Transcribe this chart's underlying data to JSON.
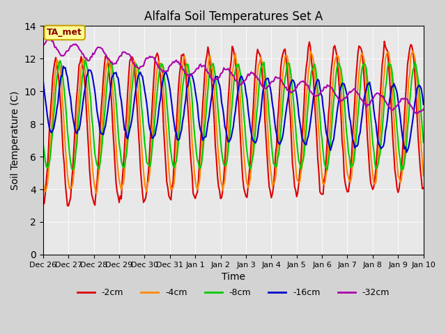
{
  "title": "Alfalfa Soil Temperatures Set A",
  "xlabel": "Time",
  "ylabel": "Soil Temperature (C)",
  "ylim": [
    0,
    14
  ],
  "xlim": [
    0,
    336
  ],
  "background_color": "#d3d3d3",
  "plot_bg_color": "#e8e8e8",
  "annotation_text": "TA_met",
  "annotation_bg": "#ffff99",
  "annotation_border": "#c8a000",
  "annotation_text_color": "#8b0000",
  "colors": {
    "-2cm": "#dd0000",
    "-4cm": "#ff8800",
    "-8cm": "#00cc00",
    "-16cm": "#0000cc",
    "-32cm": "#aa00aa"
  },
  "xtick_labels": [
    "Dec 26",
    "Dec 27",
    "Dec 28",
    "Dec 29",
    "Dec 30",
    "Dec 31",
    "Jan 1",
    "Jan 2",
    "Jan 3",
    "Jan 4",
    "Jan 5",
    "Jan 6",
    "Jan 7",
    "Jan 8",
    "Jan 9",
    "Jan 10"
  ],
  "xtick_positions": [
    0,
    24,
    48,
    72,
    96,
    120,
    144,
    168,
    192,
    216,
    240,
    264,
    288,
    312,
    336,
    360
  ]
}
